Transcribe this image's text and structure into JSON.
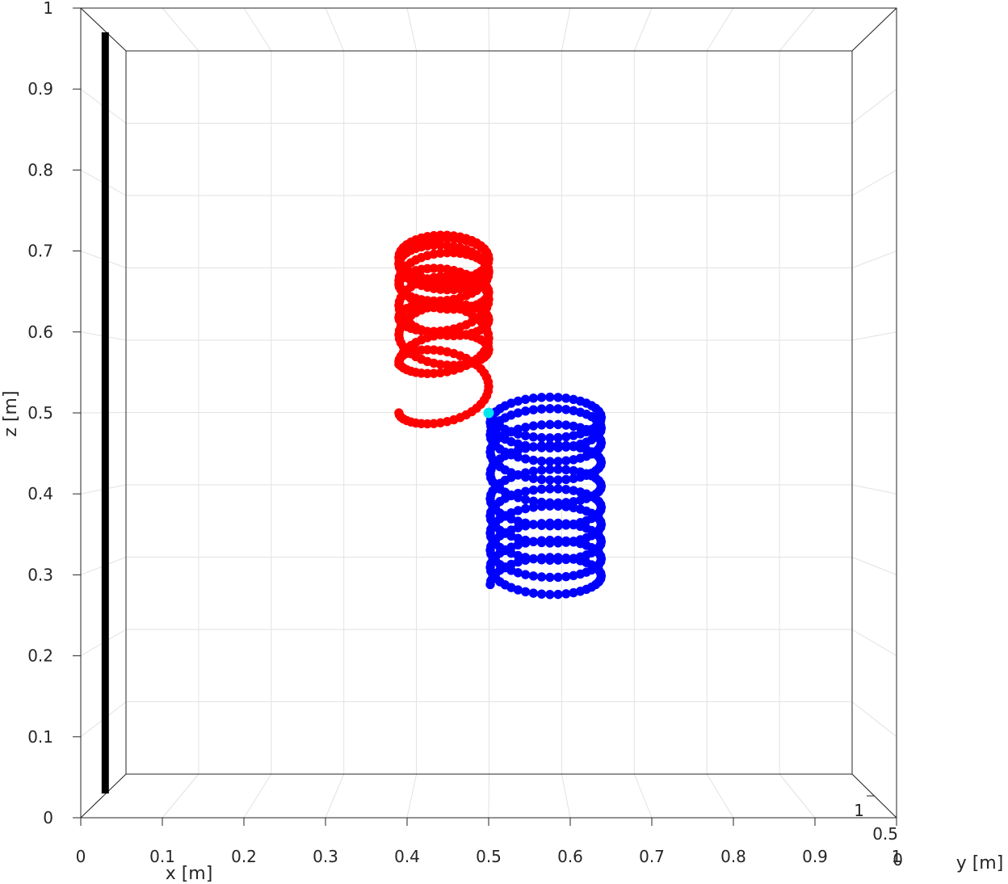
{
  "chart_data": {
    "type": "scatter",
    "projection": "3d",
    "title": "",
    "xlabel": "x [m]",
    "ylabel": "y [m]",
    "zlabel": "z [m]",
    "xlim": [
      0,
      1
    ],
    "ylim": [
      0,
      1
    ],
    "zlim": [
      0,
      1
    ],
    "grid": true,
    "x_ticks": [
      "0",
      "0.1",
      "0.2",
      "0.3",
      "0.4",
      "0.5",
      "0.6",
      "0.7",
      "0.8",
      "0.9",
      "1"
    ],
    "y_ticks": [
      "0",
      "0.5",
      "1"
    ],
    "z_ticks": [
      "0",
      "0.1",
      "0.2",
      "0.3",
      "0.4",
      "0.5",
      "0.6",
      "0.7",
      "0.8",
      "0.9",
      "1"
    ],
    "rod": {
      "x": 0.03,
      "z_min": 0.03,
      "z_max": 0.97,
      "color": "#000000"
    },
    "series": [
      {
        "color": "#ff0000",
        "kind": "helix",
        "x_center": 0.445,
        "radius_x": 0.055,
        "z_start": 0.5,
        "z_end": 0.56,
        "turns": 10,
        "z_top": 0.72,
        "z_bottom": 0.46
      },
      {
        "color": "#0000ff",
        "kind": "helix",
        "x_center": 0.57,
        "radius_x": 0.068,
        "z_start": 0.5,
        "z_end": 0.26,
        "turns": 10,
        "z_top": 0.56,
        "z_bottom": 0.26
      }
    ],
    "marker": {
      "x": 0.5,
      "z": 0.5,
      "color": "#00e5ee"
    }
  }
}
